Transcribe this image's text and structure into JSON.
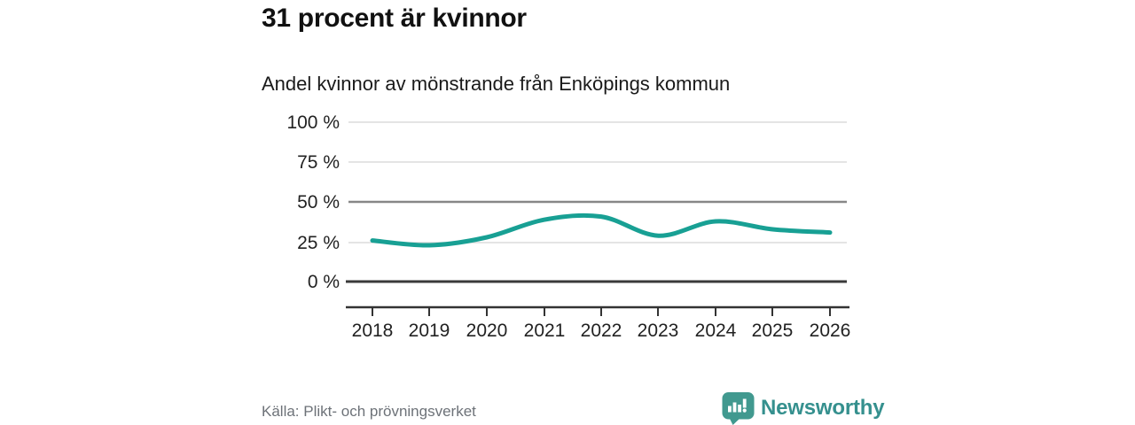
{
  "title": "31 procent är kvinnor",
  "subtitle": "Andel kvinnor av mönstrande från Enköpings kommun",
  "source": "Källa: Plikt- och prövningsverket",
  "brand": {
    "name": "Newsworthy",
    "logo_icon": "speech-bubble-bar-chart-exclamation-icon",
    "color": "#35908e",
    "icon_color": "#41998f"
  },
  "colors": {
    "line": "#18a094",
    "grid_light": "#dcdcdc",
    "grid_mid_50pct": "#878787",
    "axis_dark": "#3a3a3a",
    "title_text": "#111111",
    "tick_text": "#222222",
    "source_text": "#6d7278",
    "background": "#ffffff"
  },
  "chart_data": {
    "type": "line",
    "title": "31 procent är kvinnor",
    "subtitle": "Andel kvinnor av mönstrande från Enköpings kommun",
    "x": [
      2018,
      2019,
      2020,
      2021,
      2022,
      2023,
      2024,
      2025,
      2026
    ],
    "series": [
      {
        "name": "Andel kvinnor av mönstrande",
        "unit": "%",
        "values": [
          26,
          23,
          28,
          39,
          41,
          29,
          38,
          33,
          31
        ]
      }
    ],
    "xlabel": "",
    "ylabel": "",
    "ylim": [
      0,
      100
    ],
    "ytick_values": [
      100,
      75,
      50,
      25,
      0
    ],
    "ytick_labels": [
      "100 %",
      "75 %",
      "50 %",
      "25 %",
      "0 %"
    ],
    "grid": "horizontal",
    "emphasized_gridline": 50,
    "legend_position": "none",
    "latest_value_pct": 31
  }
}
